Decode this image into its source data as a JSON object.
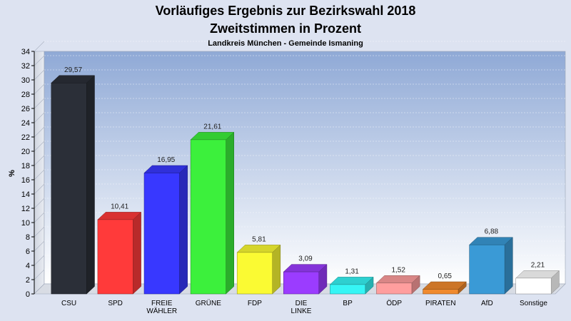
{
  "chart_data": {
    "type": "bar",
    "title": "Vorläufiges Ergebnis zur Bezirkswahl 2018",
    "title2": "Zweitstimmen in Prozent",
    "subtitle": "Landkreis München - Gemeinde Ismaning",
    "ylabel": "%",
    "ylim": [
      0,
      34
    ],
    "ytick_step": 2,
    "grid": true,
    "categories": [
      [
        "CSU"
      ],
      [
        "SPD"
      ],
      [
        "FREIE",
        "WÄHLER"
      ],
      [
        "GRÜNE"
      ],
      [
        "FDP"
      ],
      [
        "DIE",
        "LINKE"
      ],
      [
        "BP"
      ],
      [
        "ÖDP"
      ],
      [
        "PIRATEN"
      ],
      [
        "AfD"
      ],
      [
        "Sonstige"
      ]
    ],
    "values": [
      29.57,
      10.41,
      16.95,
      21.61,
      5.81,
      3.09,
      1.31,
      1.52,
      0.65,
      6.88,
      2.21
    ],
    "value_labels": [
      "29,57",
      "10,41",
      "16,95",
      "21,61",
      "5,81",
      "3,09",
      "1,31",
      "1,52",
      "0,65",
      "6,88",
      "2,21"
    ],
    "colors": [
      "#2b2f38",
      "#ff3a3a",
      "#3838ff",
      "#3cf03c",
      "#fafa33",
      "#9b3cff",
      "#36f5f5",
      "#ff9e9e",
      "#f08a2e",
      "#3a9ad6",
      "#ffffff"
    ]
  }
}
